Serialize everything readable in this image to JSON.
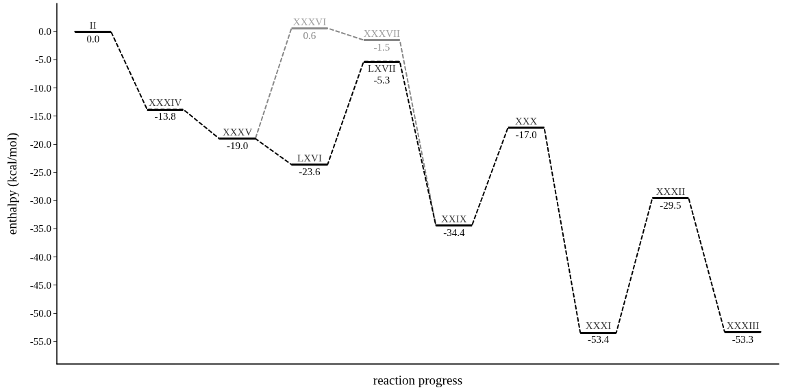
{
  "chart_data": {
    "type": "line",
    "xlabel": "reaction progress",
    "ylabel": "enthalpy (kcal/mol)",
    "categories": [
      null,
      null,
      null,
      null,
      null,
      null,
      null,
      null,
      null,
      null,
      null,
      null,
      null,
      null,
      null,
      null,
      null,
      null,
      null,
      null
    ],
    "ylim": [
      -59,
      5
    ],
    "yticks": [
      {
        "value": 0,
        "label": "0.0"
      },
      {
        "value": -5,
        "label": "-5.0"
      },
      {
        "value": -10,
        "label": "-10.0"
      },
      {
        "value": -15,
        "label": "-15.0"
      },
      {
        "value": -20,
        "label": "-20.0"
      },
      {
        "value": -25,
        "label": "-25.0"
      },
      {
        "value": -30,
        "label": "-30.0"
      },
      {
        "value": -35,
        "label": "-35.0"
      },
      {
        "value": -40,
        "label": "-40.0"
      },
      {
        "value": -45,
        "label": "-45.0"
      },
      {
        "value": -50,
        "label": "-50.0"
      },
      {
        "value": -55,
        "label": "-55.0"
      }
    ],
    "tick_labels": "y",
    "line_style": "dashed",
    "marker": "none",
    "series": [
      {
        "color": "#888888",
        "values": [
          null,
          null,
          null,
          null,
          -19.0,
          -19.0,
          0.6,
          0.6,
          -1.5,
          -1.5,
          -34.4,
          -34.4,
          null,
          null,
          null,
          null,
          null,
          null,
          null,
          null
        ],
        "value_labels": [
          null,
          null,
          null,
          null,
          null,
          null,
          "0.6",
          null,
          "-1.5",
          null,
          null,
          null,
          null,
          null,
          null,
          null,
          null,
          null,
          null,
          null
        ]
      },
      {
        "color": "#000000",
        "values": [
          0.0,
          0.0,
          -13.8,
          -13.8,
          -19.0,
          -19.0,
          -23.6,
          -23.6,
          -5.3,
          -5.3,
          -34.4,
          -34.4,
          -17.0,
          -17.0,
          -53.4,
          -53.4,
          -29.5,
          -29.5,
          -53.3,
          -53.3
        ],
        "value_labels": [
          "0.0",
          null,
          "-13.8",
          null,
          "-19.0",
          null,
          "-23.6",
          null,
          "-5.3",
          null,
          "-34.4",
          null,
          "-17.0",
          null,
          "-53.4",
          null,
          "-29.5",
          null,
          "-53.3",
          null
        ]
      }
    ],
    "annotations": [
      {
        "text": "II",
        "y": 0.0
      },
      {
        "text": "XXXIV",
        "y": -13.8
      },
      {
        "text": "XXXV",
        "y": -19.0
      },
      {
        "text": "XXXVI",
        "y": 0.6
      },
      {
        "text": "LXVI",
        "y": -23.6
      },
      {
        "text": "XXXVII",
        "y": -1.5
      },
      {
        "text": "LXVII",
        "y": -5.3
      },
      {
        "text": "XXIX",
        "y": -34.4
      },
      {
        "text": "XXX",
        "y": -17.0
      },
      {
        "text": "XXXI",
        "y": -53.4
      },
      {
        "text": "XXXII",
        "y": -29.5
      },
      {
        "text": "XXXIII",
        "y": -53.3
      }
    ]
  }
}
